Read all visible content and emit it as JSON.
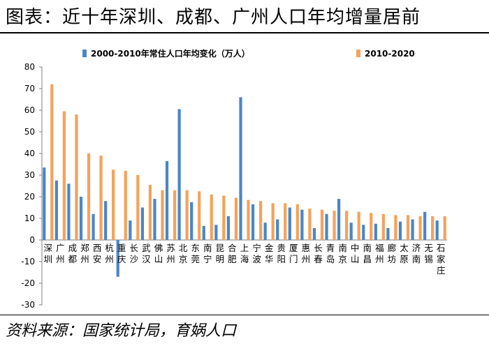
{
  "title": "图表：近十年深圳、成都、广州人口年均增量居前",
  "source": "资料来源：国家统计局，育娲人口",
  "chart_data": {
    "type": "bar",
    "categories": [
      "深圳",
      "广州",
      "成都",
      "郑州",
      "西安",
      "杭州",
      "重庆",
      "长沙",
      "武汉",
      "佛山",
      "苏州",
      "北京",
      "东莞",
      "南宁",
      "昆明",
      "合肥",
      "上海",
      "宁波",
      "金华",
      "贵阳",
      "厦门",
      "惠州",
      "长春",
      "青岛",
      "南京",
      "中山",
      "南昌",
      "福州",
      "廊坊",
      "太原",
      "济南",
      "无锡",
      "石家庄"
    ],
    "series": [
      {
        "name": "2000-2010年常住人口年均变化（万人）",
        "color": "#4a86c5",
        "values": [
          33.5,
          27.5,
          26,
          20,
          12,
          18,
          -17,
          9,
          15,
          19,
          36.5,
          60.5,
          17.5,
          6.5,
          7,
          11,
          66,
          16.5,
          8,
          9.5,
          15,
          14,
          5.5,
          12,
          19,
          8,
          7,
          7.5,
          5.5,
          8.5,
          9.5,
          13,
          9
        ]
      },
      {
        "name": "2010-2020",
        "color": "#f5a25a",
        "values": [
          72,
          59.5,
          58,
          40,
          39,
          32.5,
          32,
          30,
          25.5,
          23,
          23,
          23,
          22.5,
          21,
          20.5,
          19.5,
          18.5,
          18,
          17,
          17,
          16.5,
          14.5,
          14,
          13.5,
          13.5,
          13,
          12.5,
          12,
          11.5,
          11.5,
          11,
          11,
          11
        ]
      }
    ],
    "yticks": [
      80,
      70,
      60,
      50,
      40,
      30,
      20,
      10,
      0,
      -10,
      -20,
      -30
    ],
    "ylim": [
      -30,
      80
    ],
    "legend_position": "top"
  }
}
